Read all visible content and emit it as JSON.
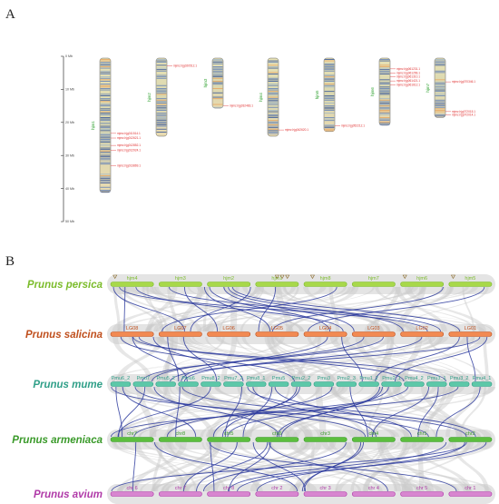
{
  "panels": {
    "a_letter": "A",
    "b_letter": "B"
  },
  "panel_a": {
    "ruler_ticks": [
      "0 Mb",
      "10 Mb",
      "20 Mb",
      "30 Mb",
      "40 Mb",
      "50 Mb"
    ],
    "chromosomes": [
      {
        "name": "hjm1",
        "length": 0.86,
        "genes": [
          {
            "label": "mjmz.hjg011514.1",
            "pos": 0.56
          },
          {
            "label": "mjmz.hjg012621.1",
            "pos": 0.595
          },
          {
            "label": "mjmz.hjg012852.1",
            "pos": 0.65
          },
          {
            "label": "mjmz.hjg012924.1",
            "pos": 0.685
          },
          {
            "label": "mjmz.hjg013869.1",
            "pos": 0.8
          }
        ]
      },
      {
        "name": "hjm2",
        "length": 0.5,
        "genes": [
          {
            "label": "mjmz.hjg020512.1",
            "pos": 0.1
          }
        ]
      },
      {
        "name": "hjm3",
        "length": 0.32,
        "genes": [
          {
            "label": "mjmz.hjg032483.1",
            "pos": 0.95
          }
        ]
      },
      {
        "name": "hjm4",
        "length": 0.5,
        "genes": [
          {
            "label": "mjmz.hjg042620.1",
            "pos": 0.92
          }
        ]
      },
      {
        "name": "hjm5",
        "length": 0.47,
        "genes": [
          {
            "label": "mjmz.hjg052212.1",
            "pos": 0.92
          }
        ]
      },
      {
        "name": "hjm6",
        "length": 0.43,
        "genes": [
          {
            "label": "mjmz.hjg061231.1",
            "pos": 0.16
          },
          {
            "label": "mjmz.hjg061256.1",
            "pos": 0.22
          },
          {
            "label": "mjmz.hjg061310.1",
            "pos": 0.28
          },
          {
            "label": "mjmz.hjg061421.1",
            "pos": 0.34
          },
          {
            "label": "mjmz.hjg061612.1",
            "pos": 0.4
          }
        ]
      },
      {
        "name": "hjm7",
        "length": 0.38,
        "genes": [
          {
            "label": "mjmz.hjg070346.1",
            "pos": 0.4
          },
          {
            "label": "mjmz.hjg072015.1",
            "pos": 0.9
          },
          {
            "label": "mjmz.hjg072014.1",
            "pos": 0.96
          }
        ]
      }
    ]
  },
  "panel_b": {
    "species": [
      {
        "name": "Prunus persica",
        "color": "#7cbc2c",
        "chr_fill": "#a8d84a",
        "chromosomes": [
          "hjm4",
          "hjm3",
          "hjm2",
          "hjm1",
          "hjm8",
          "hjm7",
          "hjm6",
          "hjm5"
        ]
      },
      {
        "name": "Prunus salicina",
        "color": "#c0501e",
        "chr_fill": "#f28a52",
        "chromosomes": [
          "LG08",
          "LG07",
          "LG06",
          "LG05",
          "LG04",
          "LG03",
          "LG02",
          "LG01"
        ]
      },
      {
        "name": "Prunus mume",
        "color": "#2f9f88",
        "chr_fill": "#5cc8a8",
        "chromosomes": [
          "Pmu6_2",
          "Pmu7",
          "Pmu5_2",
          "Pmu6",
          "Pmu8_2",
          "Pmu7_2",
          "Pmu8_1",
          "Pmu5",
          "Pmu2_2",
          "Pmu3",
          "Pmu2_3",
          "Pmu1_2",
          "Pmu2_1",
          "Pmu4_2",
          "Pmu3_1",
          "Pmu3_2",
          "Pmu4_1"
        ]
      },
      {
        "name": "Prunus armeniaca",
        "color": "#3a9a2a",
        "chr_fill": "#5cbe3e",
        "chromosomes": [
          "chr7",
          "chr8",
          "chr5",
          "chr6",
          "chr3",
          "chr4",
          "chr1",
          "chr2"
        ]
      },
      {
        "name": "Prunus avium",
        "color": "#b03aa8",
        "chr_fill": "#d886d0",
        "chromosomes": [
          "chr 6",
          "chr 7",
          "chr 8",
          "chr 2",
          "chr 3",
          "chr 4",
          "chr 5",
          "chr 1"
        ]
      }
    ]
  }
}
